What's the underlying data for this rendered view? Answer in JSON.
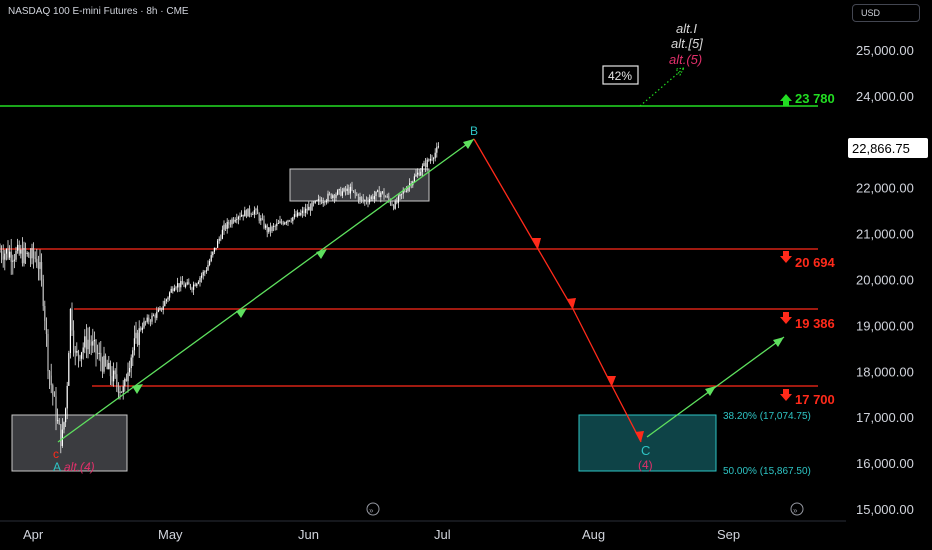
{
  "header": {
    "title": "NASDAQ 100 E-mini Futures · 8h · CME",
    "currency": "USD"
  },
  "chart_data": {
    "type": "candlestick",
    "price_axis": {
      "ticks": [
        "25,000.00",
        "24,000.00",
        "23,000.00",
        "22,000.00",
        "21,000.00",
        "20,000.00",
        "19,000.00",
        "18,000.00",
        "17,000.00",
        "16,000.00",
        "15,000.00"
      ],
      "range": [
        14800,
        25600
      ]
    },
    "time_axis": {
      "ticks": [
        "Apr",
        "May",
        "Jun",
        "Jul",
        "Aug",
        "Sep"
      ]
    },
    "current_price": "22,866.75",
    "price_path": [
      [
        "Apr-01",
        20480
      ],
      [
        "Apr-02",
        20280
      ],
      [
        "Apr-03",
        19500
      ],
      [
        "Apr-04",
        18100
      ],
      [
        "Apr-06",
        16900
      ],
      [
        "Apr-07",
        16460
      ],
      [
        "Apr-08",
        17300
      ],
      [
        "Apr-09",
        19400
      ],
      [
        "Apr-10",
        18300
      ],
      [
        "Apr-13",
        18700
      ],
      [
        "Apr-16",
        18200
      ],
      [
        "Apr-19",
        17800
      ],
      [
        "Apr-21",
        17550
      ],
      [
        "Apr-22",
        18200
      ],
      [
        "Apr-25",
        19000
      ],
      [
        "Apr-29",
        19300
      ],
      [
        "May-02",
        19900
      ],
      [
        "May-06",
        19850
      ],
      [
        "May-09",
        20200
      ],
      [
        "May-13",
        21100
      ],
      [
        "May-16",
        21400
      ],
      [
        "May-20",
        21500
      ],
      [
        "May-23",
        21050
      ],
      [
        "May-27",
        21300
      ],
      [
        "May-30",
        21400
      ],
      [
        "Jun-03",
        21700
      ],
      [
        "Jun-06",
        21850
      ],
      [
        "Jun-10",
        21950
      ],
      [
        "Jun-13",
        21700
      ],
      [
        "Jun-17",
        21900
      ],
      [
        "Jun-20",
        21600
      ],
      [
        "Jun-23",
        22050
      ],
      [
        "Jun-26",
        22400
      ],
      [
        "Jun-30",
        22866.75
      ]
    ],
    "levels": [
      {
        "price": 23780,
        "label": "23 780",
        "color": "#22dd22",
        "direction": "up"
      },
      {
        "price": 20694,
        "label": "20 694",
        "color": "#ff2a1a",
        "direction": "down"
      },
      {
        "price": 19386,
        "label": "19 386",
        "color": "#ff2a1a",
        "direction": "down"
      },
      {
        "price": 17700,
        "label": "17 700",
        "color": "#ff2a1a",
        "direction": "down"
      }
    ],
    "zones": [
      {
        "from": "Apr-01",
        "to": "Apr-22",
        "low": 15880,
        "high": 17080,
        "color": "gray"
      },
      {
        "from": "Jun-02",
        "to": "Jun-28",
        "low": 21750,
        "high": 22450,
        "color": "gray"
      },
      {
        "from": "Jul-26",
        "to": "Aug-21",
        "low": 15867.5,
        "high": 17074.75,
        "color": "teal"
      }
    ],
    "fib_labels": [
      "38.20% (17,074.75)",
      "50.00% (15,867.50)"
    ],
    "green_path": [
      [
        "Apr-07",
        16450
      ],
      [
        "Jul-06",
        23000
      ]
    ],
    "green_path_2": [
      [
        "Aug-12",
        16300
      ],
      [
        "Sep-05",
        18700
      ]
    ],
    "red_path": [
      [
        "Jul-06",
        23000
      ],
      [
        "Jul-21",
        20700
      ],
      [
        "Jul-29",
        19386
      ],
      [
        "Aug-04",
        17700
      ],
      [
        "Aug-11",
        16300
      ]
    ],
    "wave_labels": {
      "b": "B",
      "c": "C",
      "c4": "(4)",
      "a_small": "A",
      "c_small": "c",
      "alt4": "alt.(4)",
      "alt_i": "alt.I",
      "alt_5sq": "alt.[5]",
      "alt_5": "alt.(5)",
      "prob": "42%"
    },
    "colors": {
      "green": "#22dd22",
      "red": "#ff2a1a",
      "teal": "#2ec4c4",
      "pink": "#e0306a",
      "gray": "#cfcfcf"
    }
  }
}
